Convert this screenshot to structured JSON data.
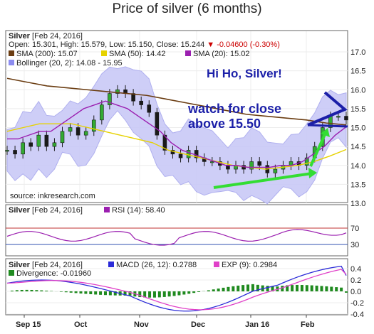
{
  "title": "Price of silver (6 months)",
  "panel_main": {
    "header_line1_symbol": "Silver",
    "header_line1_date": "[Feb 24, 2016]",
    "ohlc": "Open: 15.301, High: 15.579, Low: 15.150, Close: 15.244",
    "change": "▼ -0.04600 (-0.30%)",
    "legend": [
      {
        "label": "SMA (200): 15.07",
        "color": "#6b3d12"
      },
      {
        "label": "SMA (50): 14.42",
        "color": "#e6d200"
      },
      {
        "label": "SMA (20): 15.02",
        "color": "#9b1fb0"
      },
      {
        "label": "Bollinger (20, 2): 14.08 - 15.95",
        "color": "#8c8cf0"
      }
    ],
    "annotation_hi_ho": "Hi Ho, Silver!",
    "annotation_watch_1": "watch for close",
    "annotation_watch_2": "above 15.50",
    "source": "source: inkresearch.com",
    "y_ticks": [
      "17.0",
      "16.5",
      "16.0",
      "15.5",
      "15.0",
      "14.5",
      "14.0",
      "13.5",
      "13.0"
    ]
  },
  "panel_rsi": {
    "symbol": "Silver",
    "date": "[Feb 24, 2016]",
    "label": "RSI (14): 58.40",
    "color": "#9b1fb0",
    "y_ticks": [
      "70",
      "30"
    ]
  },
  "panel_macd": {
    "symbol": "Silver",
    "date": "[Feb 24, 2016]",
    "macd_label": "MACD (26, 12): 0.2788",
    "exp_label": "EXP (9): 0.2984",
    "div_label": "Divergence: -0.01960",
    "macd_color": "#2a2ad8",
    "exp_color": "#e040c8",
    "div_color": "#1f8a1f",
    "y_ticks": [
      "0.4",
      "0.2",
      "0.0",
      "-0.2",
      "-0.4"
    ]
  },
  "x_labels": [
    "Sep 15",
    "Oct",
    "Nov",
    "Dec",
    "Jan 16",
    "Feb"
  ],
  "chart_data": {
    "type": "line",
    "title": "Price of silver (6 months)",
    "ylim": [
      13.0,
      17.0
    ],
    "close": [
      14.4,
      14.3,
      14.6,
      14.5,
      14.8,
      14.5,
      14.6,
      14.9,
      15.0,
      14.8,
      14.9,
      15.2,
      15.6,
      15.9,
      16.0,
      15.9,
      15.7,
      15.6,
      15.4,
      14.8,
      14.4,
      14.3,
      14.2,
      14.4,
      14.2,
      14.1,
      14.1,
      14.0,
      13.9,
      14.0,
      13.9,
      14.1,
      14.0,
      13.8,
      13.9,
      14.0,
      14.1,
      14.0,
      14.2,
      14.5,
      15.0,
      15.3,
      15.3,
      15.2
    ],
    "sma20": [
      14.7,
      14.7,
      14.8,
      14.9,
      14.9,
      15.1,
      15.3,
      15.5,
      15.6,
      15.7,
      15.6,
      15.5,
      15.3,
      15.1,
      14.9,
      14.6,
      14.4,
      14.3,
      14.2,
      14.1,
      14.0,
      14.0,
      13.95,
      13.95,
      13.95,
      14.0,
      14.0,
      14.1,
      14.3,
      14.5,
      14.8,
      15.02
    ],
    "sma50": [
      14.9,
      15.0,
      15.1,
      15.1,
      15.1,
      15.0,
      14.9,
      14.8,
      14.7,
      14.6,
      14.4,
      14.3,
      14.2,
      14.1,
      14.0,
      13.95,
      13.9,
      13.95,
      14.0,
      14.1,
      14.25,
      14.42
    ],
    "sma200": [
      16.3,
      16.2,
      16.1,
      16.05,
      16.0,
      15.95,
      15.9,
      15.85,
      15.75,
      15.65,
      15.55,
      15.45,
      15.35,
      15.3,
      15.25,
      15.2,
      15.12,
      15.07
    ],
    "bollinger_last": [
      14.08,
      15.95
    ],
    "rsi_last": 58.4,
    "macd_last": 0.2788,
    "exp_last": 0.2984,
    "divergence_last": -0.0196
  }
}
